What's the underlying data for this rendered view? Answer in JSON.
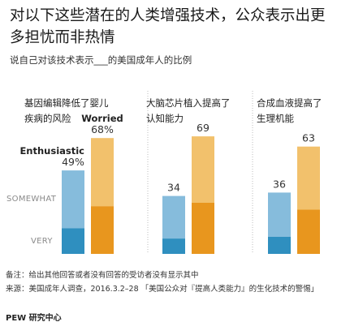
{
  "title": "对以下这些潜在的人类增强技术，公众表示出更多担忧而非热情",
  "subtitle": "说自己对该技术表示___的美国成年人的比例",
  "note": "备注：给出其他回答或者没有回答的受访者没有显示其中",
  "source": "来源：美国成年人调查，2016.3.2–28 「美国公众对『提高人类能力』的生化技术的警惕」",
  "brand": "PEW 研究中心",
  "colors": {
    "enthusiastic_very": "#2f8fbf",
    "enthusiastic_somewhat": "#86bcdc",
    "worried_very": "#e8961e",
    "worried_somewhat": "#f2c16c",
    "divider": "#bdbdbd",
    "level_text": "#8a8a8a"
  },
  "chart_data": {
    "type": "bar",
    "stacked": true,
    "level_labels": [
      "SOMEWHAT",
      "VERY"
    ],
    "series_labels": [
      "Enthusiastic",
      "Worried"
    ],
    "panels": [
      {
        "title_lines": [
          "基因编辑降低了婴儿",
          "疾病的风险"
        ],
        "enthusiastic": {
          "total": 49,
          "very": 15,
          "label": "49%"
        },
        "worried": {
          "total": 68,
          "very": 28,
          "label": "68%"
        }
      },
      {
        "title_lines": [
          "大脑芯片植入提高了",
          "认知能力"
        ],
        "enthusiastic": {
          "total": 34,
          "very": 9,
          "label": "34"
        },
        "worried": {
          "total": 69,
          "very": 30,
          "label": "69"
        }
      },
      {
        "title_lines": [
          "合成血液提高了",
          "生理机能"
        ],
        "enthusiastic": {
          "total": 36,
          "very": 10,
          "label": "36"
        },
        "worried": {
          "total": 63,
          "very": 26,
          "label": "63"
        }
      }
    ]
  }
}
